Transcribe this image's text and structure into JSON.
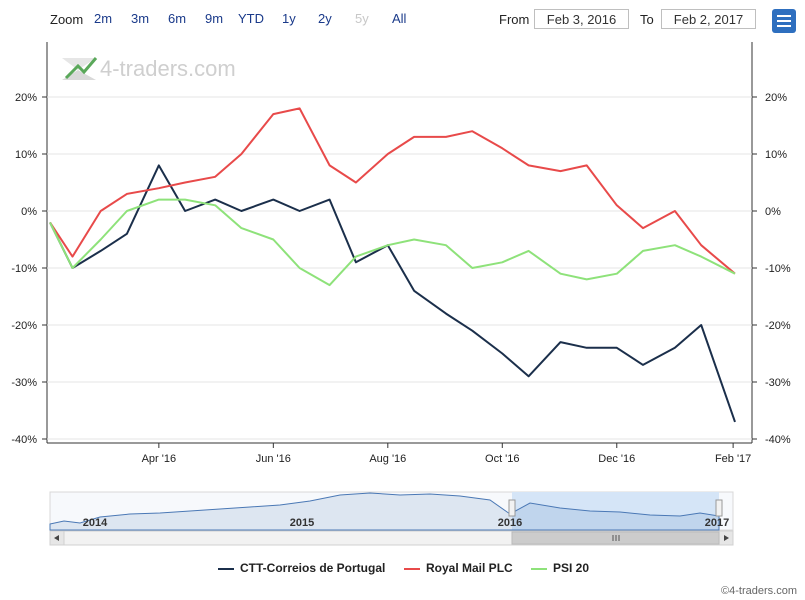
{
  "toolbar": {
    "zoom_label": "Zoom",
    "zoom_buttons": [
      "2m",
      "3m",
      "6m",
      "9m",
      "YTD",
      "1y",
      "2y",
      "5y",
      "All"
    ],
    "from_label": "From",
    "from_value": "Feb 3, 2016",
    "to_label": "To",
    "to_value": "Feb 2, 2017"
  },
  "watermark": "4-traders.com",
  "credit": "©4-traders.com",
  "colors": {
    "ctt": "#1b2f4b",
    "royal_mail": "#e84a4a",
    "psi20": "#8ee27a",
    "navigator_fill": "#d5e5f7",
    "menu": "#2e6fbf"
  },
  "chart_data": {
    "type": "line",
    "x_tick_labels": [
      "Apr '16",
      "Jun '16",
      "Aug '16",
      "Oct '16",
      "Dec '16",
      "Feb '17"
    ],
    "y_tick_labels": [
      "20%",
      "10%",
      "0%",
      "-10%",
      "-20%",
      "-30%",
      "-40%"
    ],
    "ylim": [
      -40,
      25
    ],
    "y_unit": "%",
    "grid": true,
    "legend_position": "bottom",
    "x_months": [
      "2016-02-03",
      "2016-02-15",
      "2016-03-01",
      "2016-03-15",
      "2016-04-01",
      "2016-04-15",
      "2016-05-01",
      "2016-05-15",
      "2016-06-01",
      "2016-06-15",
      "2016-07-01",
      "2016-07-15",
      "2016-08-01",
      "2016-08-15",
      "2016-09-01",
      "2016-09-15",
      "2016-10-01",
      "2016-10-15",
      "2016-11-01",
      "2016-11-15",
      "2016-12-01",
      "2016-12-15",
      "2017-01-01",
      "2017-01-15",
      "2017-02-02"
    ],
    "series": [
      {
        "name": "CTT-Correios de Portugal",
        "color": "#1b2f4b",
        "values": [
          -2,
          -10,
          -7,
          -4,
          8,
          0,
          2,
          0,
          2,
          0,
          2,
          -9,
          -6,
          -14,
          -18,
          -21,
          -25,
          -29,
          -23,
          -24,
          -24,
          -27,
          -24,
          -20,
          -37
        ]
      },
      {
        "name": "Royal Mail PLC",
        "color": "#e84a4a",
        "values": [
          -2,
          -8,
          0,
          3,
          4,
          5,
          6,
          10,
          17,
          18,
          8,
          5,
          10,
          13,
          13,
          14,
          11,
          8,
          7,
          8,
          1,
          -3,
          0,
          -6,
          -11
        ]
      },
      {
        "name": "PSI 20",
        "color": "#8ee27a",
        "values": [
          -2,
          -10,
          -5,
          0,
          2,
          2,
          1,
          -3,
          -5,
          -10,
          -13,
          -8,
          -6,
          -5,
          -6,
          -10,
          -9,
          -7,
          -11,
          -12,
          -11,
          -7,
          -6,
          -8,
          -11
        ]
      }
    ],
    "navigator": {
      "x_labels": [
        "2014",
        "2015",
        "2016",
        "2017"
      ]
    }
  }
}
